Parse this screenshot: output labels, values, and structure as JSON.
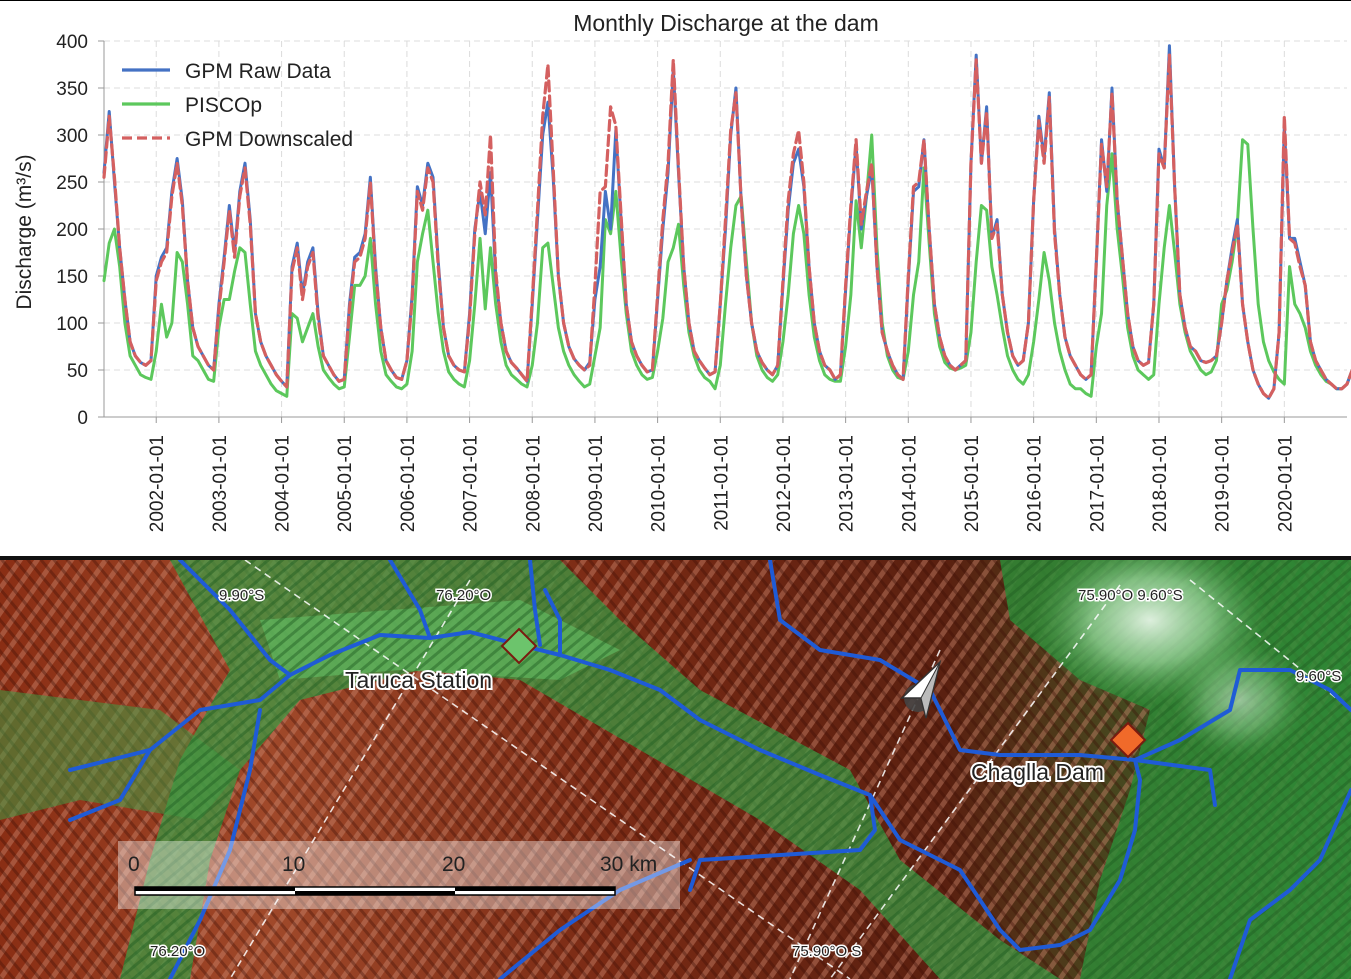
{
  "chart_data": {
    "type": "line",
    "title": "Monthly Discharge at the dam",
    "xlabel": "",
    "ylabel": "Discharge (m³/s)",
    "ylim": [
      0,
      400
    ],
    "yticks": [
      0,
      50,
      100,
      150,
      200,
      250,
      300,
      350,
      400
    ],
    "x_axis": "monthly dates, 2001-03 to 2020-12",
    "xticks": [
      "2002-01-01",
      "2003-01-01",
      "2004-01-01",
      "2005-01-01",
      "2006-01-01",
      "2007-01-01",
      "2008-01-01",
      "2009-01-01",
      "2010-01-01",
      "2011-01-01",
      "2012-01-01",
      "2013-01-01",
      "2014-01-01",
      "2015-01-01",
      "2016-01-01",
      "2017-01-01",
      "2018-01-01",
      "2019-01-01",
      "2020-01-01"
    ],
    "grid": true,
    "legend": "top-left",
    "series": [
      {
        "name": "GPM Raw Data",
        "color": "#4472c4",
        "style": "solid",
        "values": [
          260,
          325,
          250,
          180,
          125,
          80,
          65,
          58,
          55,
          60,
          150,
          170,
          180,
          240,
          275,
          230,
          145,
          95,
          75,
          65,
          55,
          50,
          120,
          170,
          225,
          175,
          240,
          270,
          210,
          110,
          80,
          65,
          55,
          45,
          38,
          32,
          160,
          185,
          130,
          165,
          180,
          110,
          65,
          55,
          45,
          38,
          40,
          120,
          170,
          175,
          195,
          255,
          160,
          95,
          60,
          50,
          42,
          40,
          60,
          130,
          245,
          225,
          270,
          255,
          165,
          95,
          65,
          55,
          50,
          48,
          110,
          200,
          240,
          195,
          260,
          150,
          100,
          70,
          58,
          52,
          45,
          38,
          120,
          210,
          300,
          335,
          255,
          150,
          100,
          75,
          62,
          55,
          50,
          58,
          125,
          160,
          240,
          200,
          305,
          210,
          120,
          80,
          65,
          55,
          48,
          50,
          125,
          200,
          260,
          370,
          260,
          160,
          100,
          70,
          60,
          52,
          45,
          48,
          120,
          200,
          300,
          350,
          230,
          150,
          100,
          70,
          58,
          50,
          45,
          55,
          140,
          220,
          270,
          285,
          245,
          160,
          100,
          70,
          55,
          50,
          40,
          45,
          135,
          220,
          290,
          200,
          235,
          265,
          160,
          90,
          70,
          55,
          45,
          40,
          145,
          240,
          245,
          295,
          200,
          120,
          85,
          65,
          55,
          50,
          55,
          60,
          270,
          385,
          270,
          330,
          190,
          210,
          130,
          90,
          65,
          55,
          60,
          100,
          230,
          320,
          275,
          345,
          200,
          130,
          85,
          65,
          55,
          45,
          40,
          45,
          165,
          295,
          240,
          350,
          230,
          170,
          110,
          75,
          60,
          55,
          58,
          120,
          285,
          265,
          395,
          245,
          130,
          95,
          75,
          70,
          60,
          58,
          60,
          65,
          100,
          145,
          180,
          210,
          120,
          80,
          50,
          35,
          25,
          20,
          30,
          90,
          310,
          190,
          190,
          165,
          140,
          80,
          60,
          50,
          40,
          35,
          30,
          30,
          35,
          50
        ]
      },
      {
        "name": "PISCOp",
        "color": "#5cc85c",
        "style": "solid",
        "values": [
          145,
          185,
          200,
          160,
          100,
          65,
          55,
          45,
          42,
          40,
          70,
          120,
          85,
          100,
          175,
          165,
          120,
          65,
          60,
          50,
          40,
          38,
          95,
          125,
          125,
          155,
          180,
          175,
          120,
          70,
          55,
          45,
          35,
          28,
          25,
          22,
          110,
          105,
          80,
          95,
          110,
          75,
          50,
          42,
          35,
          30,
          32,
          85,
          140,
          140,
          150,
          190,
          120,
          70,
          45,
          38,
          32,
          30,
          35,
          70,
          165,
          195,
          220,
          165,
          110,
          70,
          48,
          40,
          35,
          32,
          60,
          120,
          190,
          115,
          180,
          120,
          80,
          55,
          45,
          40,
          35,
          32,
          55,
          100,
          180,
          185,
          140,
          95,
          70,
          55,
          45,
          38,
          32,
          35,
          65,
          95,
          210,
          195,
          240,
          170,
          110,
          70,
          55,
          45,
          40,
          42,
          70,
          105,
          165,
          180,
          205,
          140,
          90,
          65,
          50,
          42,
          38,
          30,
          55,
          120,
          180,
          225,
          235,
          165,
          100,
          65,
          50,
          42,
          38,
          45,
          80,
          130,
          195,
          225,
          195,
          130,
          85,
          60,
          45,
          40,
          38,
          38,
          75,
          130,
          230,
          180,
          235,
          300,
          180,
          100,
          65,
          50,
          42,
          40,
          70,
          130,
          165,
          265,
          185,
          110,
          75,
          58,
          52,
          50,
          52,
          55,
          90,
          165,
          225,
          220,
          160,
          130,
          95,
          65,
          50,
          40,
          35,
          45,
          80,
          125,
          175,
          145,
          100,
          70,
          50,
          35,
          30,
          30,
          25,
          22,
          75,
          110,
          225,
          280,
          200,
          150,
          95,
          65,
          50,
          45,
          40,
          45,
          120,
          180,
          225,
          175,
          120,
          90,
          70,
          60,
          50,
          45,
          48,
          60,
          120,
          135,
          165,
          205,
          295,
          290,
          200,
          120,
          80,
          60,
          48,
          40,
          35,
          160,
          120,
          110,
          95,
          70,
          55,
          45,
          38,
          35,
          30,
          30,
          35,
          50
        ]
      },
      {
        "name": "GPM Downscaled",
        "color": "#d46060",
        "style": "dashed",
        "values": [
          255,
          320,
          255,
          180,
          125,
          80,
          65,
          58,
          55,
          60,
          145,
          165,
          175,
          235,
          270,
          225,
          145,
          95,
          75,
          65,
          55,
          50,
          115,
          165,
          220,
          170,
          235,
          265,
          205,
          110,
          80,
          65,
          55,
          45,
          38,
          32,
          155,
          180,
          125,
          160,
          175,
          105,
          65,
          55,
          45,
          38,
          40,
          115,
          165,
          170,
          190,
          250,
          155,
          95,
          60,
          50,
          42,
          40,
          60,
          125,
          240,
          220,
          265,
          250,
          160,
          95,
          65,
          55,
          50,
          48,
          105,
          195,
          250,
          215,
          300,
          155,
          100,
          70,
          58,
          52,
          45,
          38,
          125,
          220,
          320,
          375,
          265,
          150,
          100,
          75,
          62,
          55,
          50,
          55,
          140,
          240,
          245,
          330,
          310,
          215,
          120,
          80,
          65,
          55,
          48,
          50,
          130,
          210,
          270,
          380,
          265,
          160,
          100,
          70,
          60,
          52,
          45,
          48,
          120,
          210,
          305,
          345,
          230,
          150,
          100,
          70,
          58,
          50,
          45,
          55,
          145,
          230,
          280,
          305,
          250,
          160,
          100,
          70,
          55,
          50,
          40,
          45,
          140,
          225,
          295,
          205,
          240,
          270,
          160,
          90,
          70,
          55,
          45,
          40,
          150,
          245,
          250,
          295,
          200,
          120,
          85,
          65,
          55,
          50,
          55,
          60,
          270,
          380,
          270,
          325,
          190,
          205,
          130,
          90,
          65,
          55,
          60,
          100,
          230,
          315,
          270,
          340,
          195,
          130,
          85,
          65,
          55,
          45,
          40,
          45,
          165,
          290,
          245,
          345,
          230,
          170,
          110,
          75,
          60,
          55,
          58,
          120,
          280,
          265,
          385,
          245,
          130,
          95,
          75,
          70,
          60,
          58,
          60,
          65,
          100,
          145,
          175,
          205,
          120,
          80,
          50,
          35,
          25,
          20,
          30,
          90,
          320,
          190,
          185,
          160,
          140,
          80,
          60,
          50,
          40,
          35,
          30,
          30,
          35,
          50
        ]
      }
    ]
  },
  "map": {
    "labels": {
      "taruca": "Taruca Station",
      "chaglla": "Chaglla Dam"
    },
    "grid_labels": {
      "top_1": "9.90°S",
      "top_2": "76.20°O",
      "top_3": "75.90°O 9.60°S",
      "right_1": "9.60°S",
      "bottom_1": "76.20°O",
      "bottom_2": "75.90°O S"
    },
    "scale": {
      "t0": "0",
      "t1": "10",
      "t2": "20",
      "t3": "30 km"
    },
    "colors": {
      "river": "#1f5bd6",
      "taruca_marker": "#6cc46c",
      "chaglla_marker": "#f06a2a"
    },
    "icons": [
      "north-arrow-icon",
      "station-marker-icon",
      "dam-marker-icon"
    ]
  }
}
